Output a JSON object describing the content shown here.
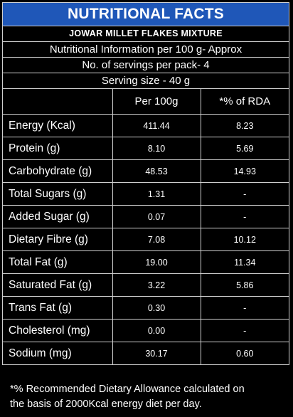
{
  "label": {
    "title": "NUTRITIONAL FACTS",
    "product": "JOWAR MILLET FLAKES MIXTURE",
    "info_line": "Nutritional Information per 100 g- Approx",
    "servings_line": "No. of servings per pack- 4",
    "serving_size_line": "Serving size - 40 g"
  },
  "table": {
    "headers": [
      "",
      "Per 100g",
      "*% of RDA"
    ],
    "rows": [
      {
        "nutrient": "Energy (Kcal)",
        "per_100g": "411.44",
        "rda": "8.23"
      },
      {
        "nutrient": "Protein (g)",
        "per_100g": "8.10",
        "rda": "5.69"
      },
      {
        "nutrient": "Carbohydrate (g)",
        "per_100g": "48.53",
        "rda": "14.93"
      },
      {
        "nutrient": "Total Sugars (g)",
        "per_100g": "1.31",
        "rda": "-"
      },
      {
        "nutrient": "Added Sugar (g)",
        "per_100g": "0.07",
        "rda": "-"
      },
      {
        "nutrient": "Dietary Fibre (g)",
        "per_100g": "7.08",
        "rda": "10.12"
      },
      {
        "nutrient": "Total Fat (g)",
        "per_100g": "19.00",
        "rda": "11.34"
      },
      {
        "nutrient": "Saturated Fat (g)",
        "per_100g": "3.22",
        "rda": "5.86"
      },
      {
        "nutrient": "Trans Fat (g)",
        "per_100g": "0.30",
        "rda": "-"
      },
      {
        "nutrient": "Cholesterol (mg)",
        "per_100g": "0.00",
        "rda": "-"
      },
      {
        "nutrient": "Sodium (mg)",
        "per_100g": "30.17",
        "rda": "0.60"
      }
    ]
  },
  "footnote": {
    "line1": "*% Recommended Dietary Allowance calculated on",
    "line2": "the basis of 2000Kcal energy diet per day."
  },
  "colors": {
    "title_background": "#1f57b8",
    "background": "#000000",
    "text": "#ffffff",
    "border": "#cfcfcf"
  }
}
